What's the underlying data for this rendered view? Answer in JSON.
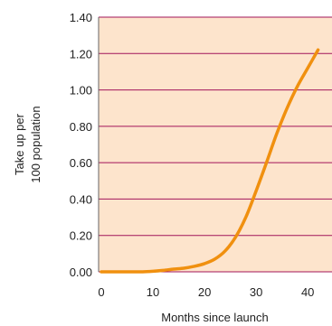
{
  "chart_data": {
    "type": "line",
    "xlabel": "Months since launch",
    "ylabel_lines": [
      "Take up per",
      "100 population"
    ],
    "xlim": [
      0,
      44
    ],
    "ylim": [
      0,
      1.4
    ],
    "x_ticks": [
      "0",
      "10",
      "20",
      "30",
      "40"
    ],
    "x_tick_values": [
      0,
      10,
      20,
      30,
      40
    ],
    "y_ticks": [
      "0.00",
      "0.20",
      "0.40",
      "0.60",
      "0.80",
      "1.00",
      "1.20",
      "1.40"
    ],
    "y_tick_values": [
      0,
      0.2,
      0.4,
      0.6,
      0.8,
      1.0,
      1.2,
      1.4
    ],
    "grid": "horizontal",
    "colors": {
      "plot_background": "#fde4cc",
      "gridline": "#a2155a",
      "line": "#f0900f",
      "axis": "#666666"
    },
    "series": [
      {
        "x": [
          0,
          2,
          4,
          6,
          8,
          10,
          12,
          14,
          16,
          18,
          20,
          22,
          24,
          26,
          28,
          30,
          32,
          34,
          36,
          38,
          40,
          42
        ],
        "y": [
          0.0,
          0.0,
          0.0,
          0.0,
          0.0,
          0.003,
          0.008,
          0.015,
          0.02,
          0.03,
          0.045,
          0.07,
          0.115,
          0.19,
          0.3,
          0.445,
          0.6,
          0.76,
          0.9,
          1.02,
          1.12,
          1.22
        ]
      }
    ]
  }
}
